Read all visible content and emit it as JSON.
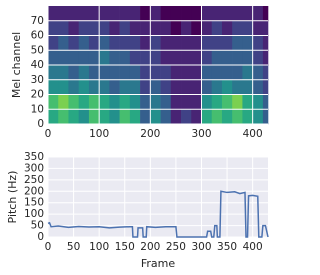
{
  "chart_data": [
    {
      "type": "heatmap",
      "ylabel": "Mel channel",
      "colormap": "viridis",
      "grid": true,
      "x_edges": [
        0,
        20,
        40,
        60,
        80,
        100,
        120,
        140,
        160,
        180,
        200,
        220,
        240,
        260,
        280,
        300,
        320,
        340,
        360,
        380,
        400,
        420,
        430
      ],
      "y_edges": [
        0,
        10,
        20,
        30,
        40,
        50,
        60,
        70,
        80
      ],
      "z": [
        [
          0.6,
          0.7,
          0.6,
          0.5,
          0.7,
          0.6,
          0.5,
          0.7,
          0.6,
          0.3,
          0.5,
          0.3,
          0.1,
          0.2,
          0.1,
          0.6,
          0.7,
          0.6,
          0.7,
          0.6,
          0.5,
          0.3
        ],
        [
          0.7,
          0.8,
          0.7,
          0.6,
          0.7,
          0.6,
          0.5,
          0.6,
          0.5,
          0.3,
          0.4,
          0.3,
          0.1,
          0.1,
          0.1,
          0.5,
          0.6,
          0.7,
          0.8,
          0.6,
          0.5,
          0.3
        ],
        [
          0.5,
          0.5,
          0.4,
          0.5,
          0.4,
          0.4,
          0.3,
          0.4,
          0.4,
          0.2,
          0.3,
          0.2,
          0.1,
          0.1,
          0.1,
          0.3,
          0.4,
          0.5,
          0.4,
          0.4,
          0.3,
          0.2
        ],
        [
          0.4,
          0.4,
          0.3,
          0.4,
          0.3,
          0.3,
          0.3,
          0.3,
          0.3,
          0.2,
          0.2,
          0.2,
          0.1,
          0.1,
          0.1,
          0.3,
          0.3,
          0.3,
          0.3,
          0.4,
          0.3,
          0.2
        ],
        [
          0.3,
          0.3,
          0.3,
          0.3,
          0.3,
          0.4,
          0.3,
          0.3,
          0.2,
          0.2,
          0.2,
          0.1,
          0.1,
          0.1,
          0.1,
          0.2,
          0.3,
          0.3,
          0.3,
          0.3,
          0.2,
          0.1
        ],
        [
          0.2,
          0.3,
          0.2,
          0.3,
          0.2,
          0.3,
          0.2,
          0.2,
          0.2,
          0.1,
          0.2,
          0.1,
          0.1,
          0.1,
          0.1,
          0.2,
          0.2,
          0.2,
          0.3,
          0.3,
          0.2,
          0.1
        ],
        [
          0.2,
          0.2,
          0.1,
          0.2,
          0.2,
          0.2,
          0.1,
          0.2,
          0.1,
          0.1,
          0.1,
          0.1,
          0.0,
          0.1,
          0.0,
          0.1,
          0.2,
          0.1,
          0.2,
          0.2,
          0.1,
          0.1
        ],
        [
          0.1,
          0.1,
          0.1,
          0.1,
          0.1,
          0.1,
          0.1,
          0.1,
          0.1,
          0.0,
          0.1,
          0.0,
          0.0,
          0.0,
          0.0,
          0.1,
          0.1,
          0.1,
          0.1,
          0.1,
          0.1,
          0.0
        ]
      ],
      "xlim": [
        0,
        430
      ],
      "ylim": [
        0,
        80
      ],
      "xticks": [
        0,
        100,
        200,
        300,
        400
      ],
      "yticks": [
        0,
        10,
        20,
        30,
        40,
        50,
        60,
        70
      ]
    },
    {
      "type": "line",
      "xlabel": "Frame",
      "ylabel": "Pitch (Hz)",
      "grid": true,
      "color": "#4c72b0",
      "x": [
        0,
        3,
        6,
        20,
        40,
        60,
        80,
        100,
        120,
        140,
        160,
        165,
        166,
        175,
        176,
        185,
        186,
        192,
        193,
        210,
        230,
        250,
        252,
        253,
        310,
        312,
        318,
        320,
        324,
        326,
        330,
        331,
        336,
        338,
        350,
        365,
        375,
        385,
        387,
        390,
        392,
        400,
        410,
        412,
        418,
        420,
        425,
        430
      ],
      "values": [
        60,
        62,
        45,
        48,
        42,
        46,
        44,
        45,
        40,
        43,
        45,
        45,
        0,
        0,
        40,
        40,
        0,
        0,
        45,
        42,
        45,
        45,
        0,
        0,
        0,
        25,
        25,
        0,
        0,
        50,
        50,
        0,
        0,
        200,
        195,
        198,
        190,
        195,
        0,
        0,
        180,
        182,
        178,
        0,
        0,
        50,
        50,
        0
      ],
      "xlim": [
        0,
        430
      ],
      "ylim": [
        0,
        350
      ],
      "xticks": [
        0,
        50,
        100,
        150,
        200,
        250,
        300,
        350,
        400
      ],
      "yticks": [
        0,
        50,
        100,
        150,
        200,
        250,
        300,
        350
      ]
    }
  ]
}
